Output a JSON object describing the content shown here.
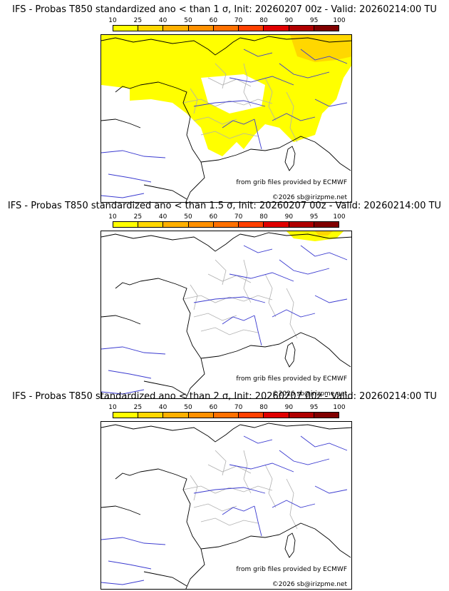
{
  "colorbar": {
    "ticks": [
      "10",
      "25",
      "40",
      "50",
      "60",
      "70",
      "80",
      "90",
      "95",
      "100"
    ],
    "colors": [
      "#ffff00",
      "#ffd700",
      "#ffb000",
      "#ff9000",
      "#ff7000",
      "#ff4000",
      "#e00000",
      "#b00000",
      "#800000"
    ]
  },
  "panels": [
    {
      "title": "IFS - Probas T850  standardized ano < than 1 σ, Init: 20260207 00z - Valid: 20260214:00 TU",
      "credit_source": "from grib files provided by ECMWF",
      "credit_copyright": "©2026 sb@irizpme.net",
      "highlight_level": "high"
    },
    {
      "title": "IFS - Probas T850  standardized ano < than 1.5 σ, Init: 20260207 00z - Valid: 20260214:00 TU",
      "credit_source": "from grib files provided by ECMWF",
      "credit_copyright": "©2026 sb@irizpme.net",
      "highlight_level": "low"
    },
    {
      "title": "IFS - Probas T850  standardized ano < than 2 σ, Init: 20260207 00z - Valid: 20260214:00 TU",
      "credit_source": "from grib files provided by ECMWF",
      "credit_copyright": "©2026 sb@irizpme.net",
      "highlight_level": "none"
    }
  ]
}
